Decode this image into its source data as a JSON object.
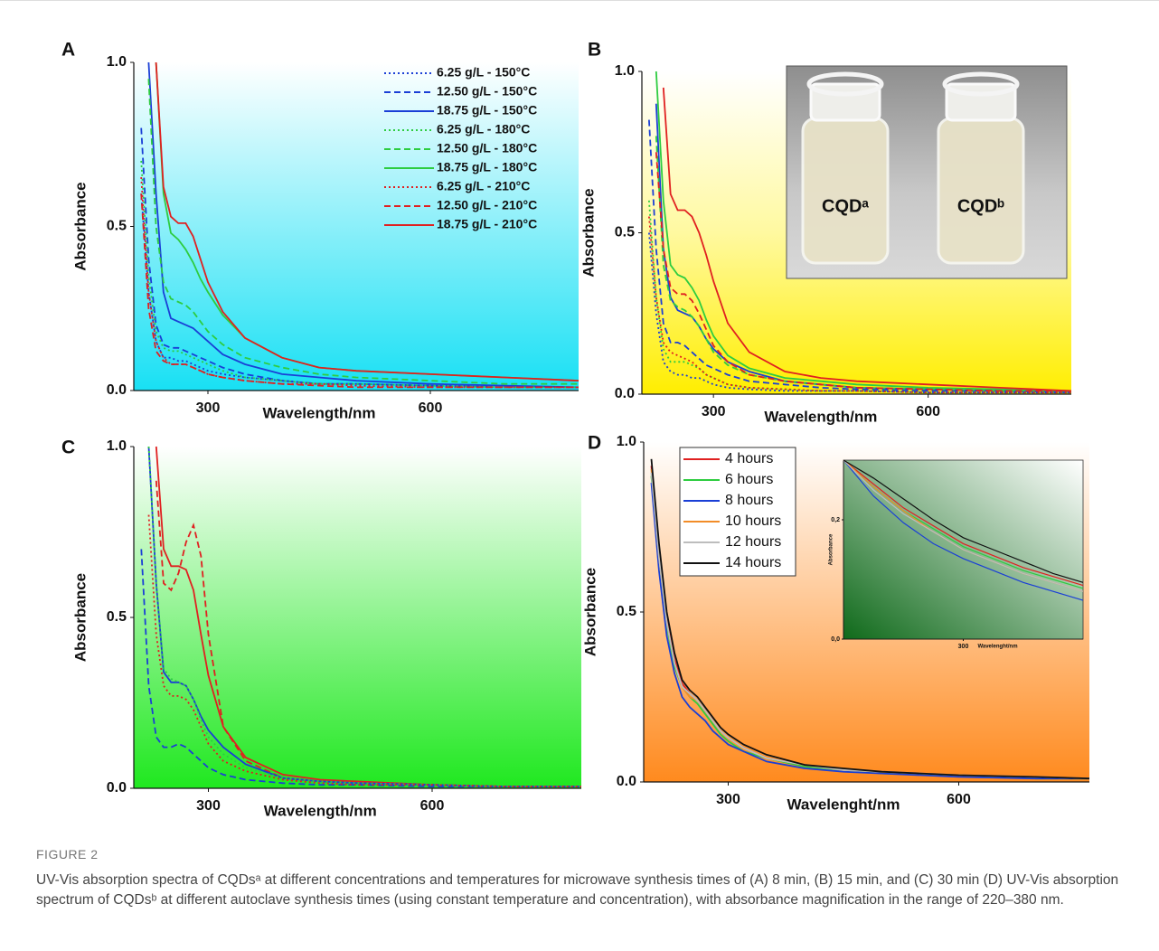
{
  "chart_data": [
    {
      "type": "line",
      "title": "A",
      "x_label": "Wavelength/nm",
      "y_label": "Absorbance",
      "x": [
        210,
        220,
        230,
        240,
        250,
        260,
        270,
        280,
        290,
        300,
        320,
        350,
        400,
        450,
        500,
        600,
        700,
        800
      ],
      "xlim": [
        200,
        800
      ],
      "xticks": [
        300,
        600
      ],
      "ylim": [
        0,
        1
      ],
      "yticks": [
        {
          "value": 0,
          "label": "0.0"
        },
        {
          "value": 0.5,
          "label": "0.5"
        },
        {
          "value": 1,
          "label": "1.0"
        }
      ],
      "legend": "top-right",
      "series": [
        {
          "name": "6.25 g/L - 150°C",
          "color": "#1a3fd6",
          "dash": "dotted",
          "values": [
            0.6,
            0.3,
            0.15,
            0.1,
            0.1,
            0.09,
            0.09,
            0.08,
            0.07,
            0.06,
            0.05,
            0.04,
            0.03,
            0.02,
            0.02,
            0.015,
            0.01,
            0.01
          ]
        },
        {
          "name": "12.50 g/L - 150°C",
          "color": "#1a3fd6",
          "dash": "dashed",
          "values": [
            0.8,
            0.4,
            0.2,
            0.14,
            0.13,
            0.13,
            0.12,
            0.11,
            0.1,
            0.09,
            0.07,
            0.05,
            0.03,
            0.02,
            0.02,
            0.015,
            0.01,
            0.01
          ]
        },
        {
          "name": "18.75 g/L - 150°C",
          "color": "#1a3fd6",
          "dash": "solid",
          "values": [
            null,
            1.0,
            0.6,
            0.3,
            0.22,
            0.21,
            0.2,
            0.19,
            0.17,
            0.15,
            0.11,
            0.08,
            0.05,
            0.04,
            0.03,
            0.02,
            0.015,
            0.01
          ]
        },
        {
          "name": "6.25 g/L - 180°C",
          "color": "#2ecc40",
          "dash": "dotted",
          "values": [
            0.7,
            0.35,
            0.18,
            0.13,
            0.12,
            0.12,
            0.11,
            0.1,
            0.09,
            0.08,
            0.06,
            0.04,
            0.03,
            0.02,
            0.02,
            0.015,
            0.01,
            0.01
          ]
        },
        {
          "name": "12.50 g/L - 180°C",
          "color": "#2ecc40",
          "dash": "dashed",
          "values": [
            null,
            0.95,
            0.5,
            0.33,
            0.28,
            0.27,
            0.26,
            0.24,
            0.21,
            0.18,
            0.14,
            0.1,
            0.07,
            0.05,
            0.04,
            0.03,
            0.02,
            0.02
          ]
        },
        {
          "name": "18.75 g/L - 180°C",
          "color": "#2ecc40",
          "dash": "solid",
          "values": [
            null,
            null,
            1.0,
            0.6,
            0.48,
            0.46,
            0.43,
            0.39,
            0.34,
            0.3,
            0.23,
            0.16,
            0.1,
            0.07,
            0.06,
            0.05,
            0.04,
            0.03
          ]
        },
        {
          "name": "6.25 g/L - 210°C",
          "color": "#e02020",
          "dash": "dotted",
          "values": [
            0.65,
            0.3,
            0.15,
            0.1,
            0.08,
            0.08,
            0.08,
            0.07,
            0.06,
            0.05,
            0.04,
            0.03,
            0.02,
            0.02,
            0.015,
            0.01,
            0.01,
            0.01
          ]
        },
        {
          "name": "12.50 g/L - 210°C",
          "color": "#e02020",
          "dash": "dashed",
          "values": [
            0.6,
            0.25,
            0.12,
            0.09,
            0.08,
            0.08,
            0.08,
            0.07,
            0.06,
            0.05,
            0.04,
            0.03,
            0.02,
            0.015,
            0.01,
            0.01,
            0.01,
            0.01
          ]
        },
        {
          "name": "18.75 g/L - 210°C",
          "color": "#e02020",
          "dash": "solid",
          "values": [
            null,
            null,
            1.0,
            0.62,
            0.53,
            0.51,
            0.51,
            0.47,
            0.4,
            0.33,
            0.24,
            0.16,
            0.1,
            0.07,
            0.06,
            0.05,
            0.04,
            0.03
          ]
        }
      ]
    },
    {
      "type": "line",
      "title": "B",
      "x_label": "Wavelength/nm",
      "y_label": "Absorbance",
      "annotations": [
        "CQDᵃ",
        "CQDᵇ"
      ],
      "x": [
        210,
        220,
        230,
        240,
        250,
        260,
        270,
        280,
        290,
        300,
        320,
        350,
        400,
        450,
        500,
        600,
        700,
        800
      ],
      "xlim": [
        200,
        800
      ],
      "xticks": [
        300,
        600
      ],
      "ylim": [
        0,
        1
      ],
      "yticks": [
        {
          "value": 0,
          "label": "0.0"
        },
        {
          "value": 0.5,
          "label": "0.5"
        },
        {
          "value": 1,
          "label": "1.0"
        }
      ],
      "series": [
        {
          "color": "#1a3fd6",
          "dash": "dotted",
          "values": [
            0.5,
            0.25,
            0.1,
            0.07,
            0.06,
            0.06,
            0.05,
            0.05,
            0.04,
            0.03,
            0.02,
            0.015,
            0.01,
            0.01,
            0.01,
            0.005,
            0.005,
            0.005
          ]
        },
        {
          "color": "#1a3fd6",
          "dash": "dashed",
          "values": [
            0.85,
            0.45,
            0.22,
            0.16,
            0.16,
            0.15,
            0.13,
            0.11,
            0.09,
            0.08,
            0.06,
            0.04,
            0.03,
            0.02,
            0.015,
            0.01,
            0.01,
            0.005
          ]
        },
        {
          "color": "#1a3fd6",
          "dash": "solid",
          "values": [
            null,
            0.9,
            0.45,
            0.3,
            0.26,
            0.25,
            0.24,
            0.21,
            0.17,
            0.14,
            0.1,
            0.07,
            0.04,
            0.03,
            0.02,
            0.015,
            0.01,
            0.01
          ]
        },
        {
          "color": "#2ecc40",
          "dash": "dotted",
          "values": [
            0.6,
            0.3,
            0.14,
            0.1,
            0.1,
            0.1,
            0.09,
            0.08,
            0.06,
            0.05,
            0.03,
            0.02,
            0.015,
            0.01,
            0.01,
            0.005,
            0.005,
            0.005
          ]
        },
        {
          "color": "#2ecc40",
          "dash": "dashed",
          "values": [
            null,
            0.8,
            0.4,
            0.29,
            0.27,
            0.26,
            0.24,
            0.21,
            0.17,
            0.13,
            0.09,
            0.06,
            0.04,
            0.03,
            0.02,
            0.015,
            0.01,
            0.01
          ]
        },
        {
          "color": "#2ecc40",
          "dash": "solid",
          "values": [
            null,
            1.0,
            0.6,
            0.4,
            0.37,
            0.36,
            0.33,
            0.29,
            0.23,
            0.18,
            0.12,
            0.08,
            0.05,
            0.04,
            0.03,
            0.02,
            0.015,
            0.01
          ]
        },
        {
          "color": "#e02020",
          "dash": "dotted",
          "values": [
            0.55,
            0.3,
            0.16,
            0.13,
            0.12,
            0.11,
            0.1,
            0.08,
            0.06,
            0.05,
            0.03,
            0.02,
            0.015,
            0.01,
            0.01,
            0.005,
            0.005,
            0.005
          ]
        },
        {
          "color": "#e02020",
          "dash": "dashed",
          "values": [
            null,
            0.75,
            0.45,
            0.33,
            0.31,
            0.31,
            0.29,
            0.25,
            0.2,
            0.15,
            0.1,
            0.06,
            0.04,
            0.03,
            0.02,
            0.015,
            0.01,
            0.01
          ]
        },
        {
          "color": "#e02020",
          "dash": "solid",
          "values": [
            null,
            null,
            0.95,
            0.62,
            0.57,
            0.57,
            0.55,
            0.5,
            0.43,
            0.35,
            0.22,
            0.13,
            0.07,
            0.05,
            0.04,
            0.03,
            0.02,
            0.01
          ]
        }
      ]
    },
    {
      "type": "line",
      "title": "C",
      "x_label": "Wavelength/nm",
      "y_label": "Absorbance",
      "x": [
        210,
        220,
        230,
        240,
        250,
        260,
        270,
        280,
        290,
        300,
        320,
        350,
        400,
        450,
        500,
        600,
        700,
        800
      ],
      "xlim": [
        200,
        800
      ],
      "xticks": [
        300,
        600
      ],
      "ylim": [
        0,
        1
      ],
      "yticks": [
        {
          "value": 0,
          "label": "0.0"
        },
        {
          "value": 0.5,
          "label": "0.5"
        },
        {
          "value": 1,
          "label": "1.0"
        }
      ],
      "series": [
        {
          "color": "#e02020",
          "dash": "solid",
          "values": [
            null,
            null,
            1.0,
            0.7,
            0.65,
            0.65,
            0.64,
            0.58,
            0.45,
            0.33,
            0.18,
            0.09,
            0.04,
            0.025,
            0.02,
            0.01,
            0.005,
            0.005
          ]
        },
        {
          "color": "#e02020",
          "dash": "dashed",
          "values": [
            null,
            null,
            0.9,
            0.6,
            0.58,
            0.63,
            0.72,
            0.77,
            0.68,
            0.45,
            0.18,
            0.08,
            0.03,
            0.02,
            0.015,
            0.01,
            0.005,
            0.005
          ]
        },
        {
          "color": "#1a3fd6",
          "dash": "solid",
          "values": [
            null,
            1.0,
            0.6,
            0.34,
            0.31,
            0.31,
            0.3,
            0.26,
            0.21,
            0.17,
            0.12,
            0.07,
            0.03,
            0.02,
            0.015,
            0.01,
            0.005,
            0.005
          ]
        },
        {
          "color": "#1a3fd6",
          "dash": "dashed",
          "values": [
            0.7,
            0.3,
            0.15,
            0.12,
            0.12,
            0.13,
            0.12,
            0.1,
            0.08,
            0.06,
            0.04,
            0.025,
            0.015,
            0.01,
            0.01,
            0.005,
            0.005,
            0.005
          ]
        },
        {
          "color": "#2ecc40",
          "dash": "dotted",
          "values": [
            null,
            1.0,
            0.6,
            0.35,
            0.32,
            0.31,
            0.3,
            0.26,
            0.2,
            0.15,
            0.1,
            0.06,
            0.03,
            0.02,
            0.015,
            0.01,
            0.005,
            0.005
          ]
        },
        {
          "color": "#e02020",
          "dash": "dotted",
          "values": [
            null,
            0.8,
            0.45,
            0.3,
            0.27,
            0.27,
            0.26,
            0.23,
            0.18,
            0.13,
            0.08,
            0.05,
            0.025,
            0.015,
            0.01,
            0.01,
            0.005,
            0.005
          ]
        }
      ]
    },
    {
      "type": "line",
      "title": "D",
      "x_label": "Wavelenght/nm",
      "y_label": "Absorbance",
      "x": [
        200,
        210,
        220,
        230,
        240,
        250,
        260,
        270,
        280,
        290,
        300,
        320,
        350,
        400,
        450,
        500,
        600,
        700,
        770
      ],
      "xlim": [
        190,
        770
      ],
      "xticks": [
        300,
        600
      ],
      "ylim": [
        0,
        1
      ],
      "yticks": [
        {
          "value": 0,
          "label": "0.0"
        },
        {
          "value": 0.5,
          "label": "0.5"
        },
        {
          "value": 1,
          "label": "1.0"
        }
      ],
      "legend": "top-left",
      "series": [
        {
          "name": "4 hours",
          "color": "#e02020",
          "dash": "solid",
          "values": [
            0.93,
            0.68,
            0.48,
            0.36,
            0.29,
            0.26,
            0.24,
            0.21,
            0.18,
            0.15,
            0.13,
            0.1,
            0.07,
            0.05,
            0.035,
            0.03,
            0.02,
            0.015,
            0.01
          ]
        },
        {
          "name": "6 hours",
          "color": "#2ecc40",
          "dash": "solid",
          "values": [
            0.9,
            0.65,
            0.46,
            0.34,
            0.28,
            0.25,
            0.23,
            0.2,
            0.17,
            0.14,
            0.12,
            0.09,
            0.07,
            0.045,
            0.035,
            0.025,
            0.02,
            0.01,
            0.01
          ]
        },
        {
          "name": "8 hours",
          "color": "#1a3fd6",
          "dash": "solid",
          "values": [
            0.88,
            0.62,
            0.43,
            0.32,
            0.25,
            0.22,
            0.2,
            0.18,
            0.15,
            0.13,
            0.11,
            0.09,
            0.06,
            0.04,
            0.03,
            0.025,
            0.015,
            0.01,
            0.01
          ]
        },
        {
          "name": "10 hours",
          "color": "#f28c28",
          "dash": "solid",
          "values": [
            0.92,
            0.66,
            0.47,
            0.35,
            0.28,
            0.25,
            0.24,
            0.21,
            0.18,
            0.15,
            0.13,
            0.1,
            0.07,
            0.05,
            0.035,
            0.03,
            0.02,
            0.015,
            0.01
          ]
        },
        {
          "name": "12 hours",
          "color": "#bdbdbd",
          "dash": "solid",
          "values": [
            0.91,
            0.66,
            0.47,
            0.35,
            0.28,
            0.26,
            0.24,
            0.21,
            0.18,
            0.15,
            0.13,
            0.1,
            0.07,
            0.05,
            0.035,
            0.03,
            0.02,
            0.015,
            0.01
          ]
        },
        {
          "name": "14 hours",
          "color": "#111111",
          "dash": "solid",
          "values": [
            0.95,
            0.7,
            0.5,
            0.38,
            0.3,
            0.27,
            0.25,
            0.22,
            0.19,
            0.16,
            0.14,
            0.11,
            0.08,
            0.05,
            0.04,
            0.03,
            0.02,
            0.015,
            0.01
          ]
        }
      ]
    },
    {
      "type": "line",
      "x_label": "Wavelenght/nm",
      "y_label": "Absorbance",
      "x": [
        220,
        240,
        260,
        280,
        300,
        320,
        340,
        360,
        380
      ],
      "xlim": [
        220,
        380
      ],
      "xticks": [
        300
      ],
      "ylim": [
        0,
        0.3
      ],
      "yticks": [
        {
          "value": 0,
          "label": "0,0"
        },
        {
          "value": 0.2,
          "label": "0,2"
        }
      ],
      "series": [
        {
          "color": "#e02020",
          "dash": "solid",
          "values": [
            0.3,
            0.26,
            0.22,
            0.19,
            0.16,
            0.14,
            0.12,
            0.105,
            0.09
          ]
        },
        {
          "color": "#2ecc40",
          "dash": "solid",
          "values": [
            0.3,
            0.255,
            0.215,
            0.185,
            0.155,
            0.135,
            0.115,
            0.1,
            0.085
          ]
        },
        {
          "color": "#1a3fd6",
          "dash": "solid",
          "values": [
            0.3,
            0.24,
            0.195,
            0.16,
            0.135,
            0.115,
            0.095,
            0.08,
            0.065
          ]
        },
        {
          "color": "#f28c28",
          "dash": "solid",
          "values": [
            0.3,
            0.255,
            0.215,
            0.18,
            0.15,
            0.13,
            0.11,
            0.095,
            0.08
          ]
        },
        {
          "color": "#bdbdbd",
          "dash": "solid",
          "values": [
            0.3,
            0.25,
            0.21,
            0.18,
            0.15,
            0.13,
            0.11,
            0.095,
            0.08
          ]
        },
        {
          "color": "#111111",
          "dash": "solid",
          "values": [
            0.3,
            0.27,
            0.235,
            0.2,
            0.17,
            0.15,
            0.13,
            0.11,
            0.095
          ]
        }
      ]
    }
  ],
  "figure": {
    "label": "FIGURE 2",
    "caption": "UV-Vis absorption spectra of CQDsᵃ at different concentrations and temperatures for microwave synthesis times of (A) 8 min, (B) 15 min, and (C) 30 min (D) UV-Vis absorption spectrum of CQDsᵇ at different autoclave synthesis times (using constant temperature and concentration), with absorbance magnification in the range of 220–380 nm."
  }
}
